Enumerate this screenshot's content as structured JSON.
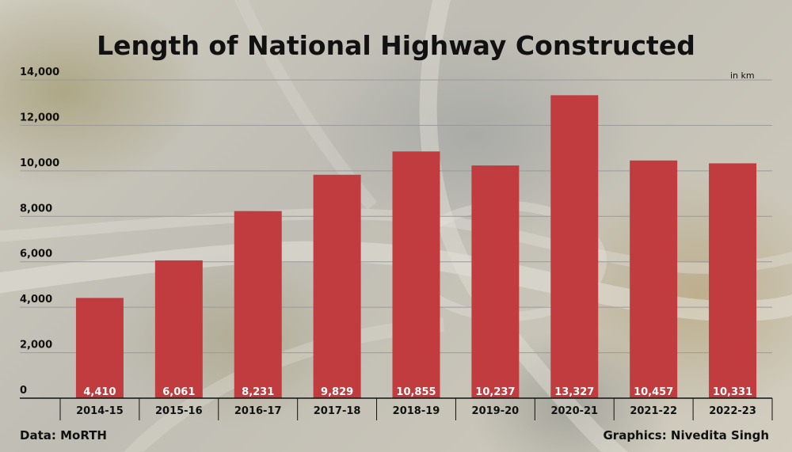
{
  "colors": {
    "bar": "#c03c3f",
    "grid": "#9a9a9a",
    "axis": "#111111"
  },
  "chart_data": {
    "type": "bar",
    "title": "Length of National Highway Constructed",
    "unit_label": "in km",
    "categories": [
      "2014-15",
      "2015-16",
      "2016-17",
      "2017-18",
      "2018-19",
      "2019-20",
      "2020-21",
      "2021-22",
      "2022-23"
    ],
    "values": [
      4410,
      6061,
      8231,
      9829,
      10855,
      10237,
      13327,
      10457,
      10331
    ],
    "value_labels": [
      "4,410",
      "6,061",
      "8,231",
      "9,829",
      "10,855",
      "10,237",
      "13,327",
      "10,457",
      "10,331"
    ],
    "yticks": [
      0,
      2000,
      4000,
      6000,
      8000,
      10000,
      12000,
      14000
    ],
    "ytick_labels": [
      "0",
      "2,000",
      "4,000",
      "6,000",
      "8,000",
      "10,000",
      "12,000",
      "14,000"
    ],
    "ylim": [
      0,
      14000
    ],
    "grid": true,
    "xlabel": "",
    "ylabel": ""
  },
  "footer": {
    "source": "Data: MoRTH",
    "credit": "Graphics: Nivedita Singh"
  }
}
